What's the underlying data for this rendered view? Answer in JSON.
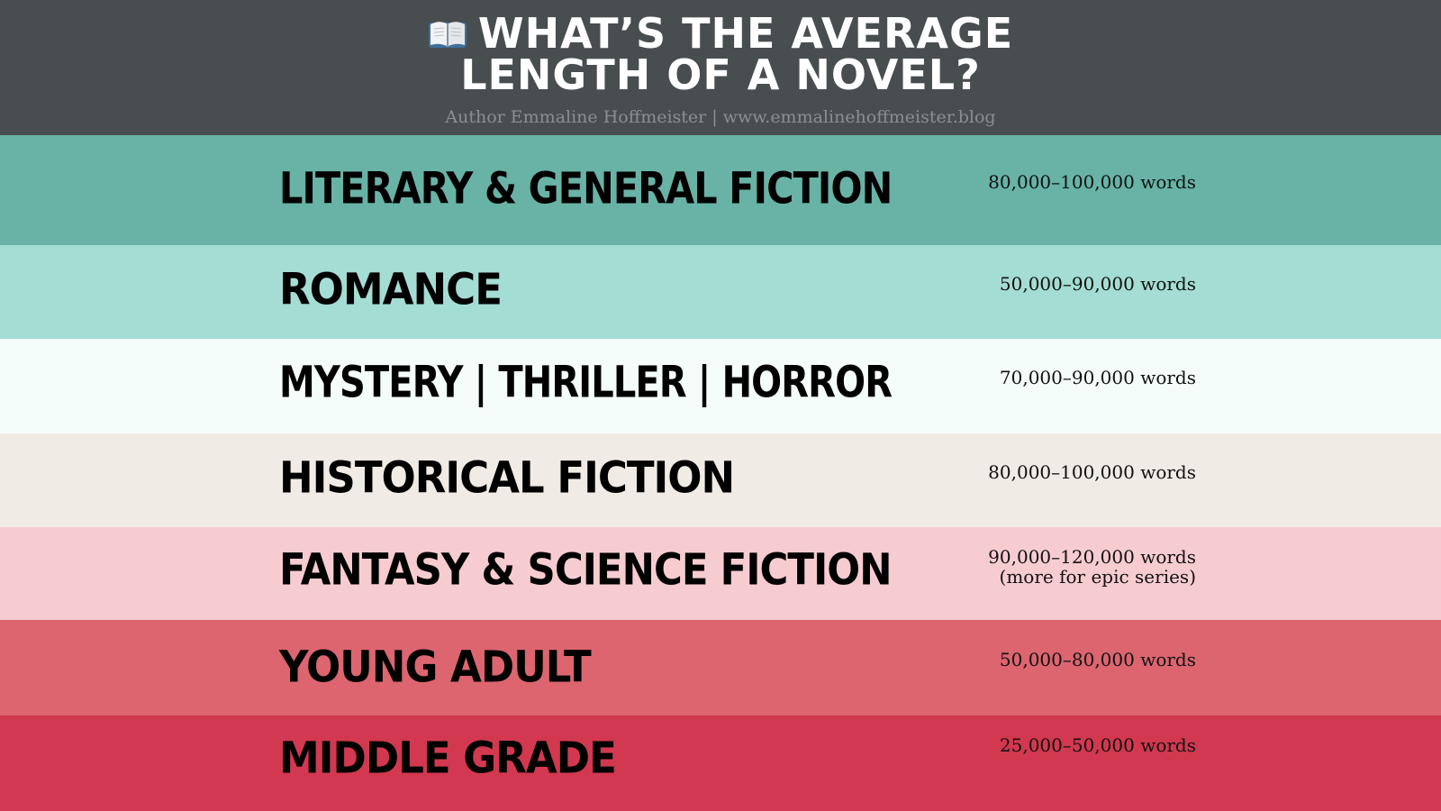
{
  "header": {
    "title_line1": "WHAT’S THE AVERAGE",
    "title_line2": "LENGTH OF A NOVEL?",
    "icon": "open-book-icon",
    "byline": "Author Emmaline Hoffmeister | www.emmalinehoffmeister.blog"
  },
  "colors": {
    "header_bg": "#484d50",
    "literary": "#68b3a6",
    "romance": "#a4ddd3",
    "mystery": "#f5fdfa",
    "historical": "#f0ebe4",
    "fantasy": "#f7ccd0",
    "young_adult": "#dc6570",
    "middle_grade": "#d2384f"
  },
  "genres": [
    {
      "name": "LITERARY & GENERAL  FICTION",
      "words": "80,000–100,000 words"
    },
    {
      "name": "ROMANCE",
      "words": "50,000–90,000 words"
    },
    {
      "name": "MYSTERY | THRILLER | HORROR",
      "words": "70,000–90,000 words"
    },
    {
      "name": "HISTORICAL FICTION",
      "words": "80,000–100,000 words"
    },
    {
      "name": "FANTASY & SCIENCE FICTION",
      "words": "90,000–120,000 words",
      "note": "(more for epic series)"
    },
    {
      "name": "YOUNG ADULT",
      "words": "50,000–80,000 words"
    },
    {
      "name": "MIDDLE GRADE",
      "words": "25,000–50,000 words"
    }
  ]
}
